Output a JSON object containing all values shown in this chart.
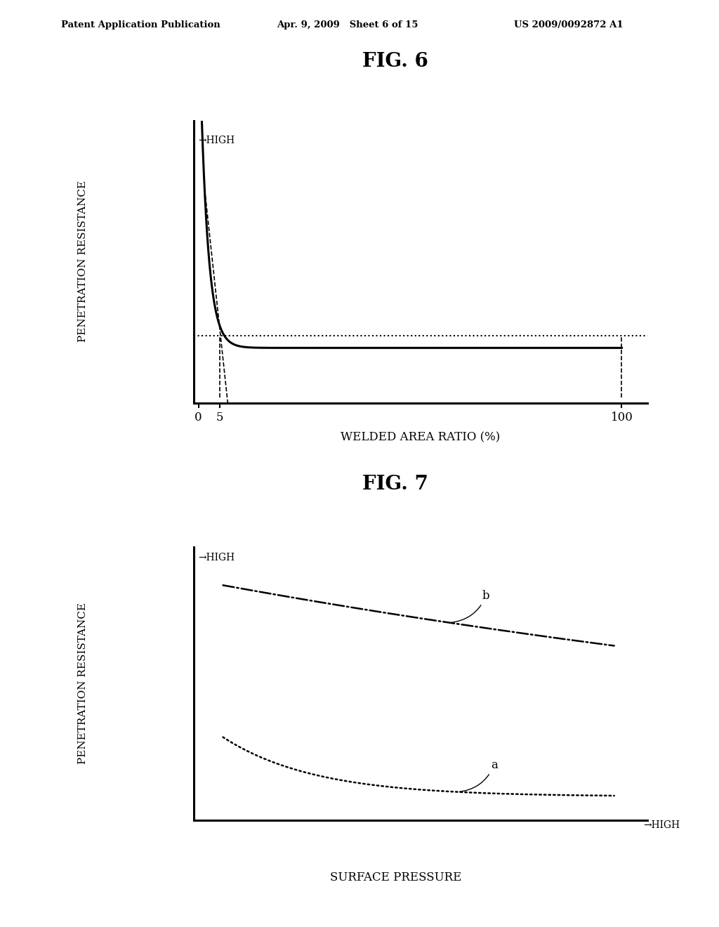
{
  "header_left": "Patent Application Publication",
  "header_center": "Apr. 9, 2009   Sheet 6 of 15",
  "header_right": "US 2009/0092872 A1",
  "fig6_title": "FIG. 6",
  "fig7_title": "FIG. 7",
  "fig6_xlabel": "WELDED AREA RATIO (%)",
  "fig6_ylabel": "PENETRATION RESISTANCE",
  "fig6_ylabel2": "→HIGH",
  "fig7_xlabel": "SURFACE PRESSURE",
  "fig7_xlabel_arrow": "→HIGH",
  "fig7_ylabel": "PENETRATION RESISTANCE",
  "fig7_ylabel2": "→HIGH",
  "fig7_label_a": "a",
  "fig7_label_b": "b",
  "background_color": "#ffffff",
  "line_color": "#000000"
}
